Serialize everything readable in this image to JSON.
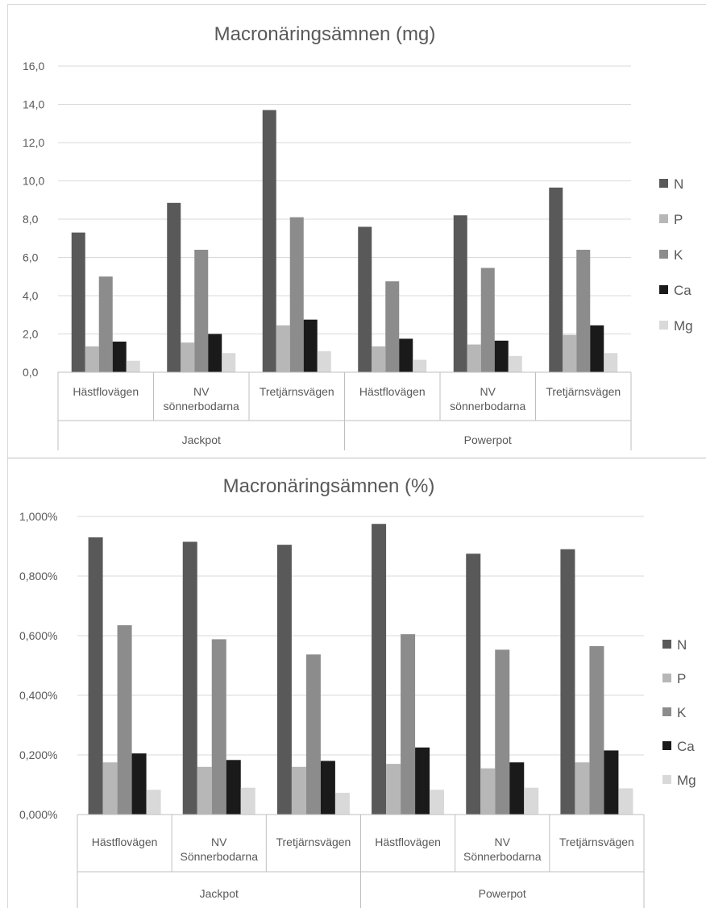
{
  "colors": {
    "N": "#595959",
    "P": "#b7b7b7",
    "K": "#8c8c8c",
    "Ca": "#1a1a1a",
    "Mg": "#d9d9d9"
  },
  "chart_data": [
    {
      "type": "bar",
      "title": "Macronäringsämnen (mg)",
      "ylim": [
        0,
        16
      ],
      "yticks": [
        "0,0",
        "2,0",
        "4,0",
        "6,0",
        "8,0",
        "10,0",
        "12,0",
        "14,0",
        "16,0"
      ],
      "groups": [
        "Jackpot",
        "Powerpot"
      ],
      "categories": [
        [
          "Hästflovägen"
        ],
        [
          "NV",
          "sönnerbodarna"
        ],
        [
          "Tretjärnsvägen"
        ],
        [
          "Hästflovägen"
        ],
        [
          "NV",
          "sönnerbodarna"
        ],
        [
          "Tretjärnsvägen"
        ]
      ],
      "legend_position": "right",
      "series": [
        {
          "name": "N",
          "values": [
            7.3,
            8.85,
            13.7,
            7.6,
            8.2,
            9.65
          ]
        },
        {
          "name": "P",
          "values": [
            1.35,
            1.55,
            2.45,
            1.35,
            1.45,
            1.95
          ]
        },
        {
          "name": "K",
          "values": [
            5.0,
            6.4,
            8.1,
            4.75,
            5.45,
            6.4
          ]
        },
        {
          "name": "Ca",
          "values": [
            1.6,
            2.0,
            2.75,
            1.75,
            1.65,
            2.45
          ]
        },
        {
          "name": "Mg",
          "values": [
            0.6,
            1.0,
            1.1,
            0.65,
            0.85,
            1.0
          ]
        }
      ]
    },
    {
      "type": "bar",
      "title": "Macronäringsämnen (%)",
      "ylim": [
        0,
        1.0
      ],
      "yticks": [
        "0,000%",
        "0,200%",
        "0,400%",
        "0,600%",
        "0,800%",
        "1,000%"
      ],
      "groups": [
        "Jackpot",
        "Powerpot"
      ],
      "categories": [
        [
          "Hästflovägen"
        ],
        [
          "NV",
          "Sönnerbodarna"
        ],
        [
          "Tretjärnsvägen"
        ],
        [
          "Hästflovägen"
        ],
        [
          "NV",
          "Sönnerbodarna"
        ],
        [
          "Tretjärnsvägen"
        ]
      ],
      "legend_position": "right",
      "series": [
        {
          "name": "N",
          "values": [
            0.93,
            0.915,
            0.905,
            0.975,
            0.875,
            0.89
          ]
        },
        {
          "name": "P",
          "values": [
            0.175,
            0.16,
            0.16,
            0.17,
            0.155,
            0.175
          ]
        },
        {
          "name": "K",
          "values": [
            0.635,
            0.588,
            0.537,
            0.605,
            0.553,
            0.565
          ]
        },
        {
          "name": "Ca",
          "values": [
            0.205,
            0.183,
            0.18,
            0.225,
            0.175,
            0.215
          ]
        },
        {
          "name": "Mg",
          "values": [
            0.083,
            0.09,
            0.073,
            0.083,
            0.09,
            0.088
          ]
        }
      ]
    }
  ]
}
